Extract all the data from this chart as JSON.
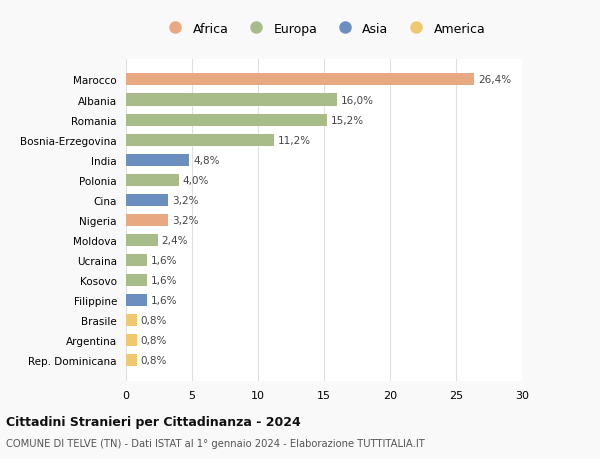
{
  "categories": [
    "Rep. Dominicana",
    "Argentina",
    "Brasile",
    "Filippine",
    "Kosovo",
    "Ucraina",
    "Moldova",
    "Nigeria",
    "Cina",
    "Polonia",
    "India",
    "Bosnia-Erzegovina",
    "Romania",
    "Albania",
    "Marocco"
  ],
  "values": [
    0.8,
    0.8,
    0.8,
    1.6,
    1.6,
    1.6,
    2.4,
    3.2,
    3.2,
    4.0,
    4.8,
    11.2,
    15.2,
    16.0,
    26.4
  ],
  "labels": [
    "0,8%",
    "0,8%",
    "0,8%",
    "1,6%",
    "1,6%",
    "1,6%",
    "2,4%",
    "3,2%",
    "3,2%",
    "4,0%",
    "4,8%",
    "11,2%",
    "15,2%",
    "16,0%",
    "26,4%"
  ],
  "colors": [
    "#F0C870",
    "#F0C870",
    "#F0C870",
    "#6B8FBF",
    "#A8BC8A",
    "#A8BC8A",
    "#A8BC8A",
    "#E8A882",
    "#6B8FBF",
    "#A8BC8A",
    "#6B8FBF",
    "#A8BC8A",
    "#A8BC8A",
    "#A8BC8A",
    "#E8A882"
  ],
  "legend_labels": [
    "Africa",
    "Europa",
    "Asia",
    "America"
  ],
  "legend_colors": [
    "#E8A882",
    "#A8BC8A",
    "#6B8FBF",
    "#F0C870"
  ],
  "title": "Cittadini Stranieri per Cittadinanza - 2024",
  "subtitle": "COMUNE DI TELVE (TN) - Dati ISTAT al 1° gennaio 2024 - Elaborazione TUTTITALIA.IT",
  "xlim": [
    0,
    30
  ],
  "xticks": [
    0,
    5,
    10,
    15,
    20,
    25,
    30
  ],
  "background_color": "#f9f9f9",
  "bar_background": "#ffffff",
  "grid_color": "#e0e0e0"
}
